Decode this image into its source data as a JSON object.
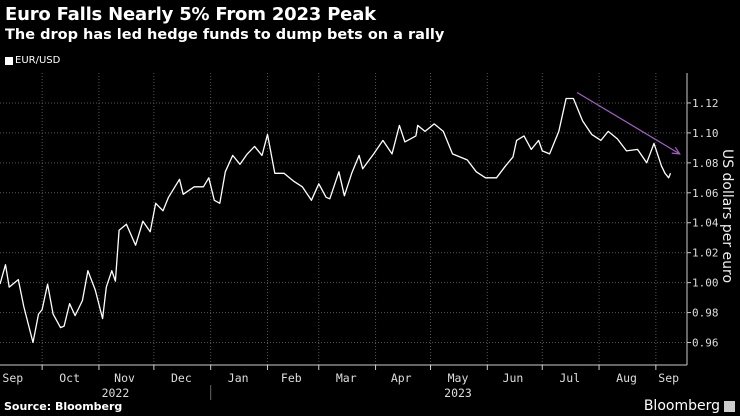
{
  "title": "Euro Falls Nearly 5% From 2023 Peak",
  "subtitle": "The drop has led hedge funds to dump bets on a rally",
  "source": "Source: Bloomberg",
  "brand": "Bloomberg",
  "chart_data": {
    "type": "line",
    "title": "Euro Falls Nearly 5% From 2023 Peak",
    "subtitle": "The drop has led hedge funds to dump bets on a rally",
    "xlabel": "",
    "ylabel": "US dollars per euro",
    "ylim": [
      0.945,
      1.14
    ],
    "xlim": [
      "2022-09-08",
      "2023-09-18"
    ],
    "grid": true,
    "legend_position": "top-left",
    "y_axis_side": "right",
    "yticks": [
      "1.12",
      "1.10",
      "1.08",
      "1.06",
      "1.04",
      "1.02",
      "1.00",
      "0.98",
      "0.96"
    ],
    "ytick_values": [
      1.12,
      1.1,
      1.08,
      1.06,
      1.04,
      1.02,
      1.0,
      0.98,
      0.96
    ],
    "month_ticks": [
      {
        "label": "Sep",
        "date": "2022-09-15"
      },
      {
        "label": "Oct",
        "date": "2022-10-16"
      },
      {
        "label": "Nov",
        "date": "2022-11-15"
      },
      {
        "label": "Dec",
        "date": "2022-12-16"
      },
      {
        "label": "Jan",
        "date": "2023-01-16"
      },
      {
        "label": "Feb",
        "date": "2023-02-14"
      },
      {
        "label": "Mar",
        "date": "2023-03-16"
      },
      {
        "label": "Apr",
        "date": "2023-04-15"
      },
      {
        "label": "May",
        "date": "2023-05-16"
      },
      {
        "label": "Jun",
        "date": "2023-06-15"
      },
      {
        "label": "Jul",
        "date": "2023-07-16"
      },
      {
        "label": "Aug",
        "date": "2023-08-16"
      },
      {
        "label": "Sep",
        "date": "2023-09-08"
      }
    ],
    "gridlines": [
      "2022-10-01",
      "2022-11-01",
      "2022-12-01",
      "2023-01-01",
      "2023-02-01",
      "2023-03-01",
      "2023-04-01",
      "2023-05-01",
      "2023-06-01",
      "2023-07-01",
      "2023-08-01",
      "2023-09-01"
    ],
    "year_labels": [
      {
        "label": "2022",
        "date": "2022-11-10"
      },
      {
        "label": "2023",
        "date": "2023-05-16"
      }
    ],
    "year_divider": "2023-01-01",
    "series": [
      {
        "name": "EUR/USD",
        "color": "#ffffff",
        "points": [
          [
            "2022-09-08",
            0.999
          ],
          [
            "2022-09-11",
            1.012
          ],
          [
            "2022-09-13",
            0.997
          ],
          [
            "2022-09-18",
            1.002
          ],
          [
            "2022-09-21",
            0.984
          ],
          [
            "2022-09-26",
            0.96
          ],
          [
            "2022-09-29",
            0.979
          ],
          [
            "2022-10-01",
            0.982
          ],
          [
            "2022-10-04",
            0.999
          ],
          [
            "2022-10-07",
            0.979
          ],
          [
            "2022-10-11",
            0.97
          ],
          [
            "2022-10-13",
            0.971
          ],
          [
            "2022-10-16",
            0.986
          ],
          [
            "2022-10-19",
            0.978
          ],
          [
            "2022-10-23",
            0.988
          ],
          [
            "2022-10-26",
            1.008
          ],
          [
            "2022-10-30",
            0.995
          ],
          [
            "2022-11-03",
            0.976
          ],
          [
            "2022-11-05",
            0.997
          ],
          [
            "2022-11-08",
            1.008
          ],
          [
            "2022-11-10",
            1.001
          ],
          [
            "2022-11-12",
            1.035
          ],
          [
            "2022-11-16",
            1.039
          ],
          [
            "2022-11-21",
            1.025
          ],
          [
            "2022-11-25",
            1.041
          ],
          [
            "2022-11-29",
            1.034
          ],
          [
            "2022-12-02",
            1.053
          ],
          [
            "2022-12-06",
            1.048
          ],
          [
            "2022-12-09",
            1.057
          ],
          [
            "2022-12-15",
            1.069
          ],
          [
            "2022-12-17",
            1.059
          ],
          [
            "2022-12-23",
            1.064
          ],
          [
            "2022-12-28",
            1.064
          ],
          [
            "2022-12-31",
            1.07
          ],
          [
            "2023-01-03",
            1.055
          ],
          [
            "2023-01-06",
            1.053
          ],
          [
            "2023-01-09",
            1.074
          ],
          [
            "2023-01-13",
            1.085
          ],
          [
            "2023-01-17",
            1.079
          ],
          [
            "2023-01-21",
            1.086
          ],
          [
            "2023-01-25",
            1.091
          ],
          [
            "2023-01-29",
            1.085
          ],
          [
            "2023-02-01",
            1.099
          ],
          [
            "2023-02-05",
            1.073
          ],
          [
            "2023-02-10",
            1.073
          ],
          [
            "2023-02-15",
            1.068
          ],
          [
            "2023-02-20",
            1.064
          ],
          [
            "2023-02-25",
            1.055
          ],
          [
            "2023-03-01",
            1.066
          ],
          [
            "2023-03-05",
            1.057
          ],
          [
            "2023-03-07",
            1.056
          ],
          [
            "2023-03-12",
            1.074
          ],
          [
            "2023-03-15",
            1.058
          ],
          [
            "2023-03-19",
            1.073
          ],
          [
            "2023-03-23",
            1.085
          ],
          [
            "2023-03-25",
            1.076
          ],
          [
            "2023-03-31",
            1.086
          ],
          [
            "2023-04-05",
            1.095
          ],
          [
            "2023-04-10",
            1.086
          ],
          [
            "2023-04-14",
            1.105
          ],
          [
            "2023-04-17",
            1.094
          ],
          [
            "2023-04-23",
            1.098
          ],
          [
            "2023-04-24",
            1.105
          ],
          [
            "2023-04-28",
            1.101
          ],
          [
            "2023-05-03",
            1.106
          ],
          [
            "2023-05-08",
            1.101
          ],
          [
            "2023-05-13",
            1.086
          ],
          [
            "2023-05-17",
            1.084
          ],
          [
            "2023-05-21",
            1.082
          ],
          [
            "2023-05-26",
            1.074
          ],
          [
            "2023-05-31",
            1.07
          ],
          [
            "2023-06-06",
            1.07
          ],
          [
            "2023-06-11",
            1.078
          ],
          [
            "2023-06-15",
            1.084
          ],
          [
            "2023-06-17",
            1.095
          ],
          [
            "2023-06-21",
            1.098
          ],
          [
            "2023-06-25",
            1.089
          ],
          [
            "2023-06-29",
            1.095
          ],
          [
            "2023-07-01",
            1.088
          ],
          [
            "2023-07-05",
            1.086
          ],
          [
            "2023-07-10",
            1.101
          ],
          [
            "2023-07-14",
            1.123
          ],
          [
            "2023-07-18",
            1.123
          ],
          [
            "2023-07-23",
            1.108
          ],
          [
            "2023-07-28",
            1.099
          ],
          [
            "2023-08-02",
            1.095
          ],
          [
            "2023-08-06",
            1.101
          ],
          [
            "2023-08-11",
            1.096
          ],
          [
            "2023-08-16",
            1.088
          ],
          [
            "2023-08-22",
            1.089
          ],
          [
            "2023-08-27",
            1.08
          ],
          [
            "2023-08-31",
            1.093
          ],
          [
            "2023-09-04",
            1.078
          ],
          [
            "2023-09-06",
            1.073
          ],
          [
            "2023-09-08",
            1.07
          ],
          [
            "2023-09-09",
            1.073
          ]
        ]
      }
    ],
    "annotations": [
      {
        "type": "arrow",
        "color": "#a35fc4",
        "from": [
          "2023-07-20",
          1.127
        ],
        "to": [
          "2023-09-14",
          1.086
        ]
      }
    ]
  }
}
